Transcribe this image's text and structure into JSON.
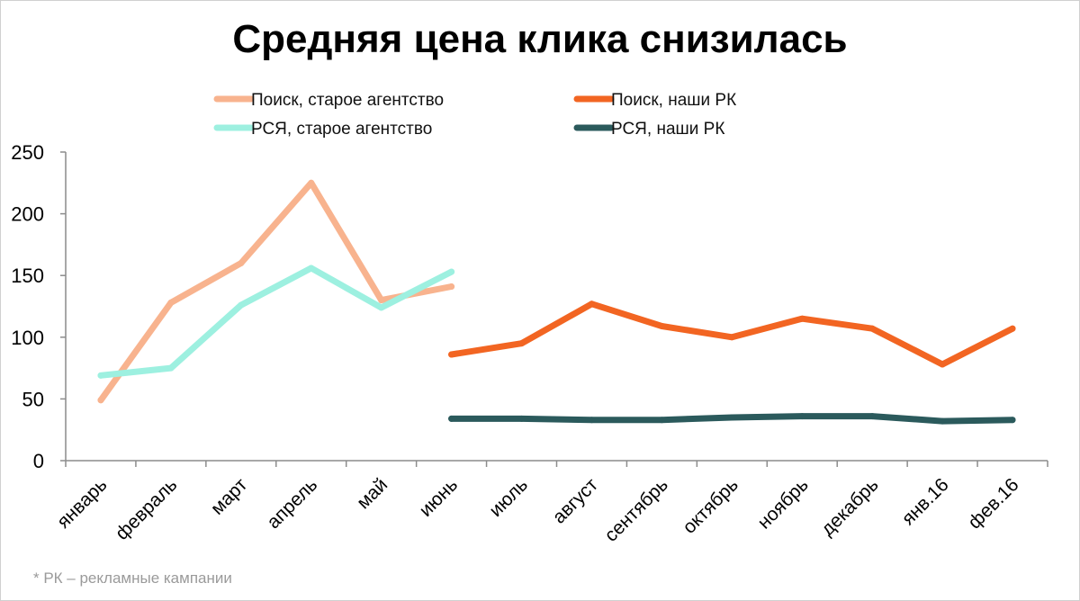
{
  "chart_data": {
    "type": "line",
    "title": "Средняя цена клика снизилась",
    "footnote": "* РК – рекламные кампании",
    "categories": [
      "январь",
      "февраль",
      "март",
      "апрель",
      "май",
      "июнь",
      "июль",
      "август",
      "сентябрь",
      "октябрь",
      "ноябрь",
      "декабрь",
      "янв.16",
      "фев.16"
    ],
    "ylim": [
      0,
      250
    ],
    "yticks": [
      0,
      50,
      100,
      150,
      200,
      250
    ],
    "grid": false,
    "legend_position": "top",
    "series": [
      {
        "name": "Поиск, старое агентство",
        "color": "#F8B38E",
        "values": [
          49,
          128,
          160,
          225,
          130,
          141,
          null,
          null,
          null,
          null,
          null,
          null,
          null,
          null
        ]
      },
      {
        "name": "Поиск, наши РК",
        "color": "#F26522",
        "values": [
          null,
          null,
          null,
          null,
          null,
          86,
          95,
          127,
          109,
          100,
          115,
          107,
          78,
          107
        ]
      },
      {
        "name": "РСЯ, старое агентство",
        "color": "#9DF0E0",
        "values": [
          69,
          75,
          126,
          156,
          124,
          153,
          null,
          null,
          null,
          null,
          null,
          null,
          null,
          null
        ]
      },
      {
        "name": "РСЯ, наши РК",
        "color": "#2B5A5C",
        "values": [
          null,
          null,
          null,
          null,
          null,
          34,
          34,
          33,
          33,
          35,
          36,
          36,
          32,
          33
        ]
      }
    ]
  }
}
